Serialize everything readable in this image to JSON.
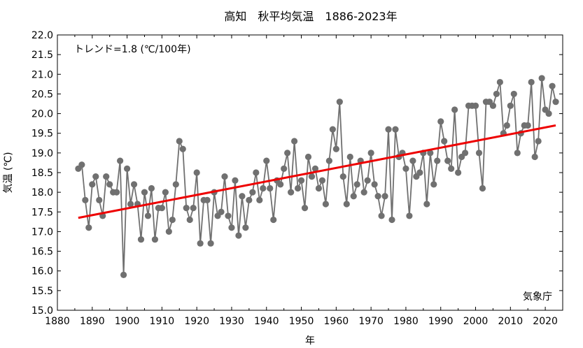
{
  "chart_data": {
    "type": "line",
    "title": "高知　秋平均気温　1886-2023年",
    "xlabel": "年",
    "ylabel": "気温 (℃)",
    "xlim": [
      1880,
      2025
    ],
    "ylim": [
      15.0,
      22.0
    ],
    "x_ticks": [
      1880,
      1890,
      1900,
      1910,
      1920,
      1930,
      1940,
      1950,
      1960,
      1970,
      1980,
      1990,
      2000,
      2010,
      2020
    ],
    "x_tick_labels": [
      "1880",
      "1890",
      "1900",
      "1910",
      "1920",
      "1930",
      "1940",
      "1950",
      "1960",
      "1970",
      "1980",
      "1990",
      "2000",
      "2010",
      "2020"
    ],
    "y_ticks": [
      15.0,
      15.5,
      16.0,
      16.5,
      17.0,
      17.5,
      18.0,
      18.5,
      19.0,
      19.5,
      20.0,
      20.5,
      21.0,
      21.5,
      22.0
    ],
    "y_tick_labels": [
      "15.0",
      "15.5",
      "16.0",
      "16.5",
      "17.0",
      "17.5",
      "18.0",
      "18.5",
      "19.0",
      "19.5",
      "20.0",
      "20.5",
      "21.0",
      "21.5",
      "22.0"
    ],
    "grid": false,
    "annotation_trend": "トレンド=1.8 (℃/100年)",
    "source_label": "気象庁",
    "series": [
      {
        "type": "line-with-markers",
        "color": "#707070",
        "x": [
          1886,
          1887,
          1888,
          1889,
          1890,
          1891,
          1892,
          1893,
          1894,
          1895,
          1896,
          1897,
          1898,
          1899,
          1900,
          1901,
          1902,
          1903,
          1904,
          1905,
          1906,
          1907,
          1908,
          1909,
          1910,
          1911,
          1912,
          1913,
          1914,
          1915,
          1916,
          1917,
          1918,
          1919,
          1920,
          1921,
          1922,
          1923,
          1924,
          1925,
          1926,
          1927,
          1928,
          1929,
          1930,
          1931,
          1932,
          1933,
          1934,
          1935,
          1936,
          1937,
          1938,
          1939,
          1940,
          1941,
          1942,
          1943,
          1944,
          1945,
          1946,
          1947,
          1948,
          1949,
          1950,
          1951,
          1952,
          1953,
          1954,
          1955,
          1956,
          1957,
          1958,
          1959,
          1960,
          1961,
          1962,
          1963,
          1964,
          1965,
          1966,
          1967,
          1968,
          1969,
          1970,
          1971,
          1972,
          1973,
          1974,
          1975,
          1976,
          1977,
          1978,
          1979,
          1980,
          1981,
          1982,
          1983,
          1984,
          1985,
          1986,
          1987,
          1988,
          1989,
          1990,
          1991,
          1992,
          1993,
          1994,
          1995,
          1996,
          1997,
          1998,
          1999,
          2000,
          2001,
          2002,
          2003,
          2004,
          2005,
          2006,
          2007,
          2008,
          2009,
          2010,
          2011,
          2012,
          2013,
          2014,
          2015,
          2016,
          2017,
          2018,
          2019,
          2020,
          2021,
          2022,
          2023
        ],
        "y": [
          18.6,
          18.7,
          17.8,
          17.1,
          18.2,
          18.4,
          17.8,
          17.4,
          18.4,
          18.2,
          18.0,
          18.0,
          18.8,
          15.9,
          18.6,
          17.7,
          18.2,
          17.7,
          16.8,
          18.0,
          17.4,
          18.1,
          16.8,
          17.6,
          17.6,
          18.0,
          17.0,
          17.3,
          18.2,
          19.3,
          19.1,
          17.6,
          17.3,
          17.6,
          18.5,
          16.7,
          17.8,
          17.8,
          16.7,
          18.0,
          17.4,
          17.5,
          18.4,
          17.4,
          17.1,
          18.3,
          16.9,
          17.9,
          17.1,
          17.8,
          18.0,
          18.5,
          17.8,
          18.1,
          18.8,
          18.1,
          17.3,
          18.3,
          18.2,
          18.6,
          19.0,
          18.0,
          19.3,
          18.1,
          18.3,
          17.6,
          18.9,
          18.4,
          18.6,
          18.1,
          18.3,
          17.7,
          18.8,
          19.6,
          19.1,
          20.3,
          18.4,
          17.7,
          18.9,
          17.9,
          18.2,
          18.8,
          18.0,
          18.3,
          19.0,
          18.2,
          17.9,
          17.4,
          17.9,
          19.6,
          17.3,
          19.6,
          18.9,
          19.0,
          18.6,
          17.4,
          18.8,
          18.4,
          18.5,
          19.0,
          17.7,
          19.0,
          18.2,
          18.8,
          19.8,
          19.3,
          18.8,
          18.6,
          20.1,
          18.5,
          18.9,
          19.0,
          20.2,
          20.2,
          20.2,
          19.0,
          18.1,
          20.3,
          20.3,
          20.2,
          20.5,
          20.8,
          19.5,
          19.7,
          20.2,
          20.5,
          19.0,
          19.5,
          19.7,
          19.7,
          20.8,
          18.9,
          19.3,
          20.9,
          20.1,
          20.0,
          20.7,
          20.3
        ]
      },
      {
        "type": "trend",
        "color": "#ee0000",
        "x": [
          1886,
          2023
        ],
        "y": [
          17.35,
          19.7
        ]
      }
    ]
  }
}
